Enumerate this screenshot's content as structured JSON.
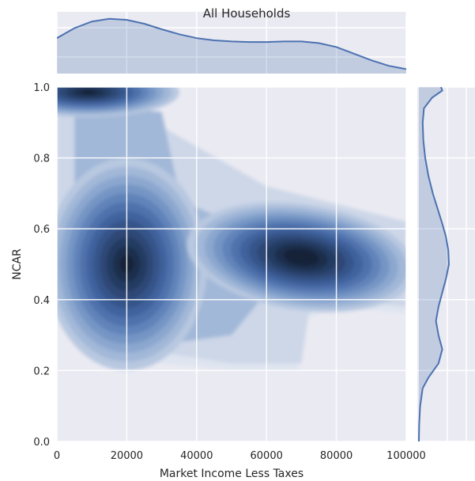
{
  "chart_data": {
    "type": "jointplot-kde",
    "title": "All Households",
    "xlabel": "Market Income Less Taxes",
    "ylabel": "NCAR",
    "xlim": [
      0,
      100000
    ],
    "ylim": [
      0.0,
      1.0
    ],
    "x_ticks": [
      0,
      20000,
      40000,
      60000,
      80000,
      100000
    ],
    "x_tick_labels": [
      "0",
      "20000",
      "40000",
      "60000",
      "80000",
      "100000"
    ],
    "y_ticks": [
      0.0,
      0.2,
      0.4,
      0.6,
      0.8,
      1.0
    ],
    "y_tick_labels": [
      "0.0",
      "0.2",
      "0.4",
      "0.6",
      "0.8",
      "1.0"
    ],
    "grid": true,
    "density_peaks": [
      {
        "x": 10000,
        "y": 0.985,
        "strength": 1.0
      },
      {
        "x": 20000,
        "y": 0.5,
        "strength": 0.95
      },
      {
        "x": 70000,
        "y": 0.52,
        "strength": 1.0
      }
    ],
    "marginal_x": {
      "x": [
        0,
        5000,
        10000,
        15000,
        20000,
        25000,
        30000,
        35000,
        40000,
        45000,
        50000,
        55000,
        60000,
        65000,
        70000,
        75000,
        80000,
        85000,
        90000,
        95000,
        100000
      ],
      "density": [
        0.64,
        0.82,
        0.94,
        0.99,
        0.97,
        0.9,
        0.8,
        0.71,
        0.64,
        0.6,
        0.58,
        0.57,
        0.57,
        0.58,
        0.58,
        0.55,
        0.48,
        0.36,
        0.24,
        0.14,
        0.08
      ]
    },
    "marginal_y": {
      "y": [
        0.0,
        0.05,
        0.1,
        0.15,
        0.18,
        0.22,
        0.26,
        0.3,
        0.34,
        0.38,
        0.42,
        0.46,
        0.5,
        0.54,
        0.58,
        0.62,
        0.66,
        0.7,
        0.75,
        0.8,
        0.85,
        0.9,
        0.94,
        0.97,
        0.99,
        1.0
      ],
      "density": [
        0.0,
        0.01,
        0.04,
        0.12,
        0.3,
        0.62,
        0.74,
        0.62,
        0.54,
        0.62,
        0.74,
        0.86,
        0.95,
        0.93,
        0.85,
        0.72,
        0.58,
        0.44,
        0.3,
        0.2,
        0.14,
        0.12,
        0.16,
        0.42,
        0.74,
        0.7
      ]
    }
  }
}
